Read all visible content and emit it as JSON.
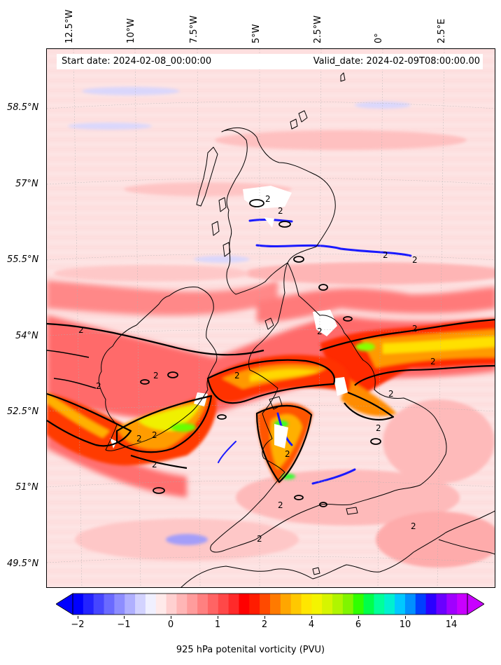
{
  "header": {
    "start_date": "Start date: 2024-02-08_00:00:00",
    "valid_date": "Valid_date: 2024-02-09T08:00:00.00"
  },
  "axes": {
    "lon_labels": [
      "12.5°W",
      "10°W",
      "7.5°W",
      "5°W",
      "2.5°W",
      "0°",
      "2.5°E"
    ],
    "lat_labels": [
      "58.5°N",
      "57°N",
      "55.5°N",
      "54°N",
      "52.5°N",
      "51°N",
      "49.5°N"
    ]
  },
  "contour": {
    "level_label": "2"
  },
  "colorbar": {
    "title": "925 hPa potenital vorticity (PVU)",
    "tick_labels": [
      "−2",
      "−1",
      "0",
      "1",
      "2",
      "4",
      "6",
      "10",
      "14"
    ],
    "colors": [
      "#0000ff",
      "#2323ff",
      "#4646ff",
      "#6a6aff",
      "#8d8dff",
      "#b0b0ff",
      "#d3d3ff",
      "#f0f0ff",
      "#ffeaea",
      "#ffd0d0",
      "#ffb6b6",
      "#ff9c9c",
      "#ff8080",
      "#ff6464",
      "#ff4848",
      "#ff2a2a",
      "#ff0000",
      "#ff1c00",
      "#ff4a00",
      "#ff7a00",
      "#ffa600",
      "#ffc800",
      "#ffe600",
      "#f4f400",
      "#d6f500",
      "#b0f500",
      "#80f500",
      "#30ff00",
      "#00ff4a",
      "#00ff9a",
      "#00f0d0",
      "#00c8ff",
      "#0090ff",
      "#0040ff",
      "#2a00ff",
      "#6a00ff",
      "#a000ff",
      "#c800ff"
    ],
    "extend_low": "#0000ff",
    "extend_high": "#c800ff"
  },
  "map_colors": {
    "background": "#fde4e4",
    "light_red": "#ffb3b3",
    "red": "#ff2a2a",
    "orange": "#ff8c00",
    "yellow": "#ffe600",
    "green": "#7cfc00",
    "blue": "#1a1aff",
    "pale_blue": "#d8d8ff"
  }
}
